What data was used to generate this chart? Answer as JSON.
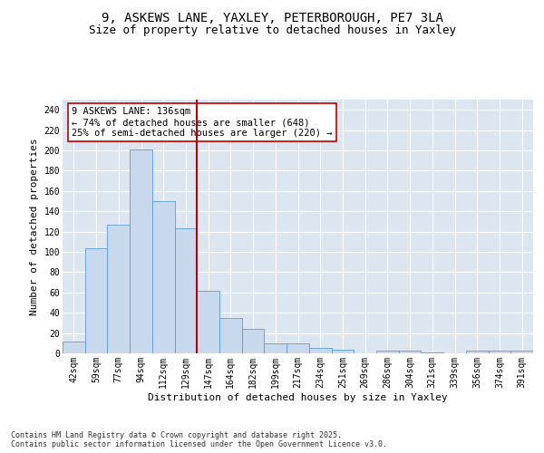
{
  "title_line1": "9, ASKEWS LANE, YAXLEY, PETERBOROUGH, PE7 3LA",
  "title_line2": "Size of property relative to detached houses in Yaxley",
  "xlabel": "Distribution of detached houses by size in Yaxley",
  "ylabel": "Number of detached properties",
  "footer": "Contains HM Land Registry data © Crown copyright and database right 2025.\nContains public sector information licensed under the Open Government Licence v3.0.",
  "categories": [
    "42sqm",
    "59sqm",
    "77sqm",
    "94sqm",
    "112sqm",
    "129sqm",
    "147sqm",
    "164sqm",
    "182sqm",
    "199sqm",
    "217sqm",
    "234sqm",
    "251sqm",
    "269sqm",
    "286sqm",
    "304sqm",
    "321sqm",
    "339sqm",
    "356sqm",
    "374sqm",
    "391sqm"
  ],
  "values": [
    12,
    104,
    127,
    201,
    150,
    123,
    62,
    35,
    24,
    10,
    10,
    5,
    4,
    0,
    3,
    3,
    1,
    0,
    3,
    3,
    3
  ],
  "bar_color": "#c9d9ed",
  "bar_edge_color": "#5b9bd5",
  "vline_x_index": 5.5,
  "vline_color": "#c00000",
  "annotation_text": "9 ASKEWS LANE: 136sqm\n← 74% of detached houses are smaller (648)\n25% of semi-detached houses are larger (220) →",
  "annotation_box_color": "#ffffff",
  "annotation_box_edge": "#c00000",
  "ylim": [
    0,
    250
  ],
  "yticks": [
    0,
    20,
    40,
    60,
    80,
    100,
    120,
    140,
    160,
    180,
    200,
    220,
    240
  ],
  "background_color": "#ffffff",
  "plot_background_color": "#dce6f1",
  "title_fontsize": 10,
  "subtitle_fontsize": 9,
  "tick_fontsize": 7,
  "label_fontsize": 8,
  "footer_fontsize": 6,
  "annotation_fontsize": 7.5
}
